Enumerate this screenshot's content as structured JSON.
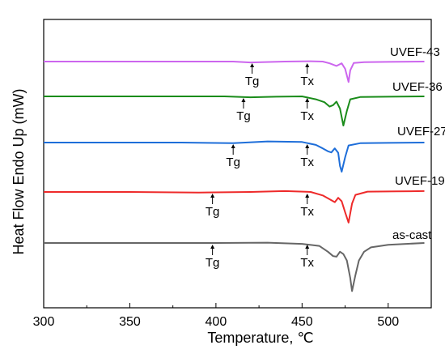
{
  "chart_data": {
    "type": "line",
    "title": "",
    "xlabel": "Temperature, ℃",
    "ylabel": "Heat Flow Endo Up (mW)",
    "xlim": [
      300,
      525
    ],
    "x_ticks": [
      300,
      350,
      400,
      450,
      500
    ],
    "y_ticks": [],
    "grid": false,
    "legend": "none",
    "series": [
      {
        "name": "UVEF-43",
        "color": "#cc66ee",
        "offset": 0,
        "points": [
          [
            300,
            0
          ],
          [
            410,
            0
          ],
          [
            420,
            -0.3
          ],
          [
            440,
            0
          ],
          [
            455,
            0.1
          ],
          [
            462,
            0
          ],
          [
            466,
            -0.6
          ],
          [
            470,
            -1.5
          ],
          [
            473,
            -0.6
          ],
          [
            475,
            -2.5
          ],
          [
            477,
            -7
          ],
          [
            478,
            -3
          ],
          [
            480,
            -0.5
          ],
          [
            486,
            -0.2
          ],
          [
            500,
            -0.1
          ],
          [
            521,
            0
          ]
        ],
        "annotations": [
          {
            "label": "Tg",
            "x": 421
          },
          {
            "label": "Tx",
            "x": 453
          }
        ]
      },
      {
        "name": "UVEF-36",
        "color": "#1a8c1a",
        "offset": 0,
        "points": [
          [
            300,
            0
          ],
          [
            405,
            0
          ],
          [
            420,
            -0.3
          ],
          [
            435,
            -0.1
          ],
          [
            450,
            0
          ],
          [
            458,
            -1
          ],
          [
            463,
            -2
          ],
          [
            466,
            -3.5
          ],
          [
            468,
            -3
          ],
          [
            470,
            -1.8
          ],
          [
            472,
            -4.2
          ],
          [
            474,
            -10
          ],
          [
            476,
            -5
          ],
          [
            478,
            -1
          ],
          [
            484,
            -0.2
          ],
          [
            500,
            -0.1
          ],
          [
            521,
            0
          ]
        ],
        "annotations": [
          {
            "label": "Tg",
            "x": 416
          },
          {
            "label": "Tx",
            "x": 453
          }
        ]
      },
      {
        "name": "UVEF-27",
        "color": "#1e6ed9",
        "offset": 0,
        "points": [
          [
            300,
            0
          ],
          [
            380,
            0
          ],
          [
            410,
            -0.2
          ],
          [
            430,
            0.4
          ],
          [
            450,
            0.2
          ],
          [
            458,
            -0.8
          ],
          [
            462,
            -2
          ],
          [
            465,
            -3
          ],
          [
            467,
            -3.4
          ],
          [
            469,
            -2
          ],
          [
            471,
            -3.5
          ],
          [
            472,
            -8
          ],
          [
            473,
            -10
          ],
          [
            475,
            -5
          ],
          [
            477,
            -1
          ],
          [
            484,
            -0.2
          ],
          [
            500,
            -0.1
          ],
          [
            521,
            0
          ]
        ],
        "annotations": [
          {
            "label": "Tg",
            "x": 410
          },
          {
            "label": "Tx",
            "x": 453
          }
        ]
      },
      {
        "name": "UVEF-19",
        "color": "#ee2a2a",
        "offset": 0,
        "points": [
          [
            300,
            0
          ],
          [
            350,
            0
          ],
          [
            390,
            -0.2
          ],
          [
            420,
            0
          ],
          [
            440,
            0.3
          ],
          [
            455,
            0
          ],
          [
            462,
            -1.2
          ],
          [
            466,
            -2.5
          ],
          [
            469,
            -3.5
          ],
          [
            471,
            -2
          ],
          [
            473,
            -3.2
          ],
          [
            475,
            -7
          ],
          [
            477,
            -10.5
          ],
          [
            479,
            -4
          ],
          [
            481,
            -1
          ],
          [
            488,
            0.1
          ],
          [
            505,
            0.2
          ],
          [
            521,
            0.3
          ]
        ],
        "annotations": [
          {
            "label": "Tg",
            "x": 398
          },
          {
            "label": "Tx",
            "x": 453
          }
        ]
      },
      {
        "name": "as-cast",
        "color": "#666666",
        "offset": 0,
        "points": [
          [
            300,
            0
          ],
          [
            350,
            0
          ],
          [
            400,
            0
          ],
          [
            430,
            0.1
          ],
          [
            450,
            -0.3
          ],
          [
            460,
            -1
          ],
          [
            465,
            -3
          ],
          [
            468,
            -4.5
          ],
          [
            470,
            -4.7
          ],
          [
            472,
            -3
          ],
          [
            474,
            -3.8
          ],
          [
            476,
            -6
          ],
          [
            478,
            -12
          ],
          [
            479,
            -16.5
          ],
          [
            481,
            -11
          ],
          [
            483,
            -6
          ],
          [
            486,
            -3
          ],
          [
            490,
            -1.5
          ],
          [
            500,
            -0.6
          ],
          [
            521,
            0
          ]
        ],
        "annotations": [
          {
            "label": "Tg",
            "x": 398
          },
          {
            "label": "Tx",
            "x": 453
          }
        ]
      }
    ]
  }
}
